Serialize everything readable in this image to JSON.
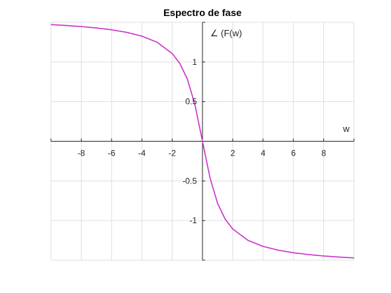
{
  "chart_data": {
    "type": "line",
    "title": "Espectro de fase",
    "xlabel": "w",
    "ylabel": "∠ (F(w)",
    "xlim": [
      -10,
      10
    ],
    "ylim": [
      -1.5,
      1.5
    ],
    "xticks": [
      -8,
      -6,
      -4,
      -2,
      2,
      4,
      6,
      8
    ],
    "yticks": [
      -1,
      -0.5,
      0.5,
      1
    ],
    "grid": true,
    "series": [
      {
        "color": "#cc33cc",
        "x": [
          -10,
          -9,
          -8,
          -7,
          -6,
          -5,
          -4,
          -3,
          -2,
          -1.5,
          -1,
          -0.5,
          0,
          0.5,
          1,
          1.5,
          2,
          3,
          4,
          5,
          6,
          7,
          8,
          9,
          10
        ],
        "y": [
          1.4711,
          1.4601,
          1.4464,
          1.4289,
          1.4056,
          1.3734,
          1.3258,
          1.249,
          1.1071,
          0.9828,
          0.7854,
          0.4636,
          0,
          -0.4636,
          -0.7854,
          -0.9828,
          -1.1071,
          -1.249,
          -1.3258,
          -1.3734,
          -1.4056,
          -1.4289,
          -1.4464,
          -1.4601,
          -1.4711
        ]
      }
    ]
  }
}
